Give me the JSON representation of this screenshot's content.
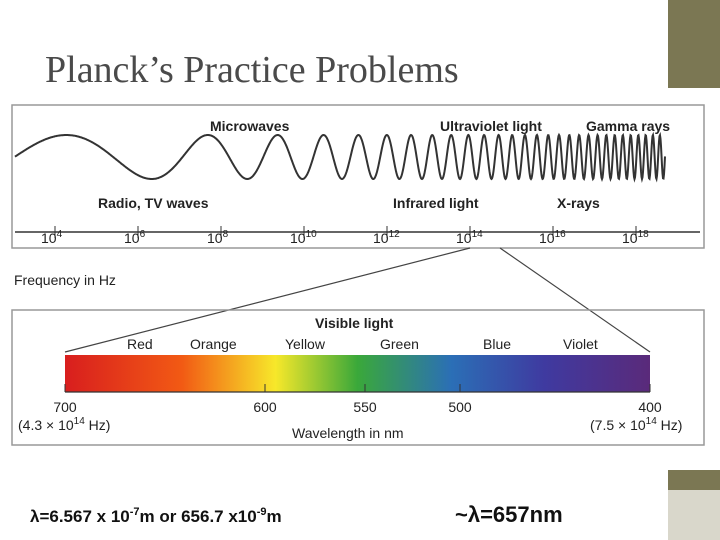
{
  "title": "Planck’s Practice Problems",
  "figure": {
    "top_labels": {
      "microwaves": "Microwaves",
      "ultraviolet": "Ultraviolet light",
      "gamma": "Gamma rays",
      "radio": "Radio, TV waves",
      "infrared": "Infrared light",
      "xrays": "X-rays"
    },
    "frequency_ticks": [
      {
        "base": "10",
        "exp": "4"
      },
      {
        "base": "10",
        "exp": "6"
      },
      {
        "base": "10",
        "exp": "8"
      },
      {
        "base": "10",
        "exp": "10"
      },
      {
        "base": "10",
        "exp": "12"
      },
      {
        "base": "10",
        "exp": "14"
      },
      {
        "base": "10",
        "exp": "16"
      },
      {
        "base": "10",
        "exp": "18"
      }
    ],
    "frequency_label": "Frequency in Hz",
    "visible_label": "Visible light",
    "colors": [
      "Red",
      "Orange",
      "Yellow",
      "Green",
      "Blue",
      "Violet"
    ],
    "wavelength_ticks": [
      700,
      600,
      550,
      500,
      400
    ],
    "left_freq": {
      "pre": "(4.3 × 10",
      "exp": "14",
      "post": " Hz)"
    },
    "right_freq": {
      "pre": "(7.5 × 10",
      "exp": "14",
      "post": " Hz)"
    },
    "wavelength_label": "Wavelength in nm"
  },
  "answer_left": {
    "text1": "λ=6.567 x 10",
    "sup1": "-7",
    "text2": "m or 656.7 x10",
    "sup2": "-9",
    "text3": "m"
  },
  "answer_right": "~λ=657nm"
}
